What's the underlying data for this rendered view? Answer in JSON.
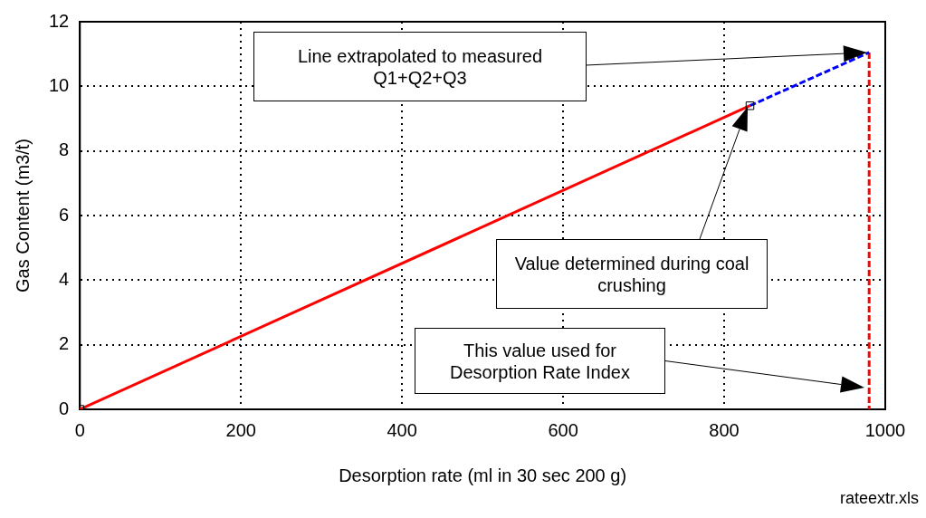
{
  "chart_data": {
    "type": "line",
    "xlabel": "Desorption rate (ml in 30 sec 200 g)",
    "ylabel": "Gas Content (m3/t)",
    "xlim": [
      0,
      1000
    ],
    "xticks": [
      0,
      200,
      400,
      600,
      800,
      1000
    ],
    "ylim": [
      0,
      12
    ],
    "yticks": [
      0,
      2,
      4,
      6,
      8,
      10,
      12
    ],
    "grid": true,
    "legend": false,
    "series": [
      {
        "type": "line",
        "color": "#ff0000",
        "x": [
          0,
          832
        ],
        "values": [
          0,
          9.4
        ],
        "marker": "square",
        "line_style": "solid"
      },
      {
        "type": "line",
        "color": "#0000ff",
        "x": [
          832,
          980
        ],
        "values": [
          9.4,
          11.05
        ],
        "marker": "none",
        "line_style": "dashed"
      },
      {
        "type": "line",
        "color": "#ff0000",
        "x": [
          980,
          980
        ],
        "values": [
          11.05,
          0
        ],
        "marker": "none",
        "line_style": "dashed"
      }
    ],
    "annotations": [
      "Line extrapolated to measured Q1+Q2+Q3",
      "Value determined during coal crushing",
      "This value used for Desorption Rate Index",
      "rateextr.xls"
    ]
  }
}
